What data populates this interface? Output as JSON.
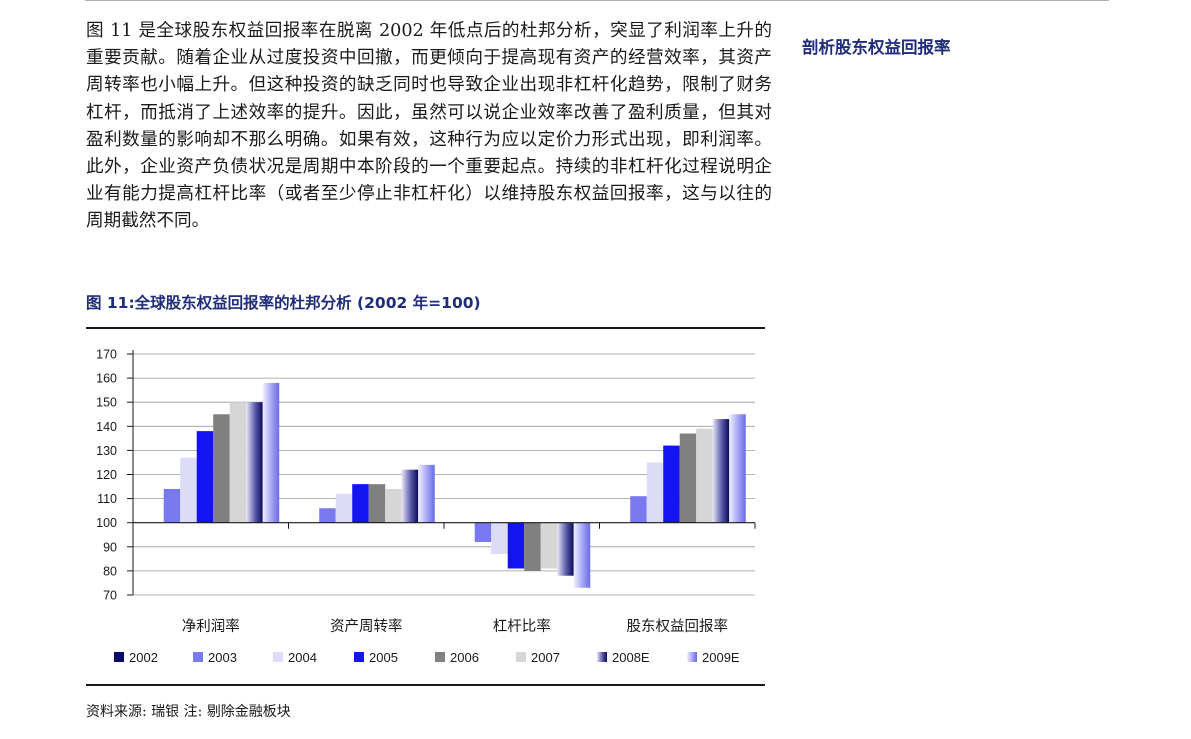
{
  "body_text": "图 11 是全球股东权益回报率在脱离 2002 年低点后的杜邦分析，突显了利润率上升的重要贡献。随着企业从过度投资中回撤，而更倾向于提高现有资产的经营效率，其资产周转率也小幅上升。但这种投资的缺乏同时也导致企业出现非杠杆化趋势，限制了财务杠杆，而抵消了上述效率的提升。因此，虽然可以说企业效率改善了盈利质量，但其对盈利数量的影响却不那么明确。如果有效，这种行为应以定价力形式出现，即利润率。此外，企业资产负债状况是周期中本阶段的一个重要起点。持续的非杠杆化过程说明企业有能力提高杠杆比率（或者至少停止非杠杆化）以维持股东权益回报率，这与以往的周期截然不同。",
  "sidebar_heading": "剖析股东权益回报率",
  "figure_title": "图 11:全球股东权益回报率的杜邦分析 (2002 年=100)",
  "source_note": "资料来源: 瑞银  注: 剔除金融板块",
  "chart_data": {
    "type": "bar",
    "baseline": 100,
    "ylim": [
      70,
      170
    ],
    "yticks": [
      70,
      80,
      90,
      100,
      110,
      120,
      130,
      140,
      150,
      160,
      170
    ],
    "grid": true,
    "legend_position": "bottom",
    "categories": [
      "净利润率",
      "资产周转率",
      "杠杆比率",
      "股东权益回报率"
    ],
    "series": [
      {
        "name": "2002",
        "color": "#0a0a6e",
        "style": "solid",
        "values": [
          100,
          100,
          100,
          100
        ]
      },
      {
        "name": "2003",
        "color": "#7a7af0",
        "style": "solid",
        "values": [
          114,
          106,
          92,
          111
        ]
      },
      {
        "name": "2004",
        "color": "#dcdcf7",
        "style": "solid",
        "values": [
          127,
          112,
          87,
          125
        ]
      },
      {
        "name": "2005",
        "color": "#1414f0",
        "style": "solid",
        "values": [
          138,
          116,
          81,
          132
        ]
      },
      {
        "name": "2006",
        "color": "#808080",
        "style": "solid",
        "values": [
          145,
          116,
          80,
          137
        ]
      },
      {
        "name": "2007",
        "color": "#d6d6d6",
        "style": "solid",
        "values": [
          150,
          114,
          81,
          139
        ]
      },
      {
        "name": "2008E",
        "color": "#1a1a7a",
        "style": "gradient-dark",
        "values": [
          150,
          122,
          78,
          143
        ]
      },
      {
        "name": "2009E",
        "color": "#8080f0",
        "style": "gradient-light",
        "values": [
          158,
          124,
          73,
          145
        ]
      }
    ]
  }
}
